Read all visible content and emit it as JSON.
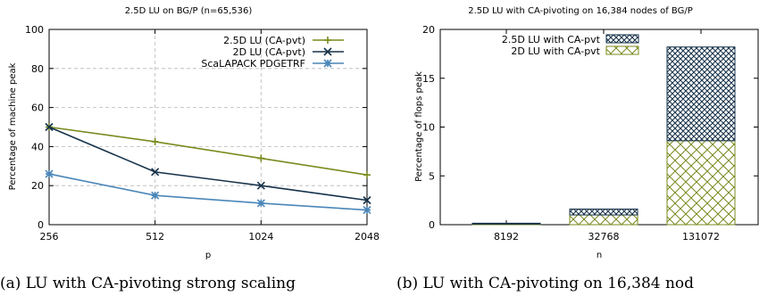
{
  "chart_data": [
    {
      "type": "line",
      "title": "2.5D LU on BG/P (n=65,536)",
      "xlabel": "p",
      "ylabel": "Percentage of machine peak",
      "x_scale": "log2",
      "x": [
        256,
        512,
        1024,
        2048
      ],
      "x_ticks": [
        "256",
        "512",
        "1024",
        "2048"
      ],
      "ylim": [
        0,
        100
      ],
      "y_ticks": [
        "0",
        "20",
        "40",
        "60",
        "80",
        "100"
      ],
      "grid": true,
      "legend": "top-right",
      "series": [
        {
          "name": "2.5D LU (CA-pvt)",
          "values": [
            50,
            42.5,
            34,
            25.5
          ],
          "color": "#7a8a1e",
          "marker": "plus"
        },
        {
          "name": "2D LU (CA-pvt)",
          "values": [
            50,
            27,
            20,
            12.5
          ],
          "color": "#16324a",
          "marker": "cross"
        },
        {
          "name": "ScaLAPACK PDGETRF",
          "values": [
            26,
            15,
            11,
            7.5
          ],
          "color": "#4a86b8",
          "marker": "star"
        }
      ],
      "caption": "(a) LU with CA-pivoting strong scaling"
    },
    {
      "type": "bar",
      "stacked": true,
      "title": "2.5D LU with CA-pivoting on 16,384 nodes of BG/P",
      "xlabel": "n",
      "ylabel": "Percentage of flops peak",
      "categories": [
        "8192",
        "32768",
        "131072"
      ],
      "ylim": [
        0,
        20
      ],
      "y_ticks": [
        "0",
        "5",
        "10",
        "15",
        "20"
      ],
      "grid": false,
      "legend": "top-left",
      "series": [
        {
          "name": "2D LU with CA-pvt",
          "values": [
            0.1,
            1.0,
            8.6
          ],
          "color": "#7a8a1e",
          "pattern": "crosshatch-light"
        },
        {
          "name": "2.5D LU with CA-pvt",
          "values": [
            0.05,
            0.6,
            9.6
          ],
          "color": "#16324a",
          "pattern": "crosshatch-dense"
        }
      ],
      "legend_order": [
        "2.5D LU with CA-pvt",
        "2D LU with CA-pvt"
      ],
      "caption": "(b) LU with CA-pivoting on 16,384 nod"
    }
  ]
}
